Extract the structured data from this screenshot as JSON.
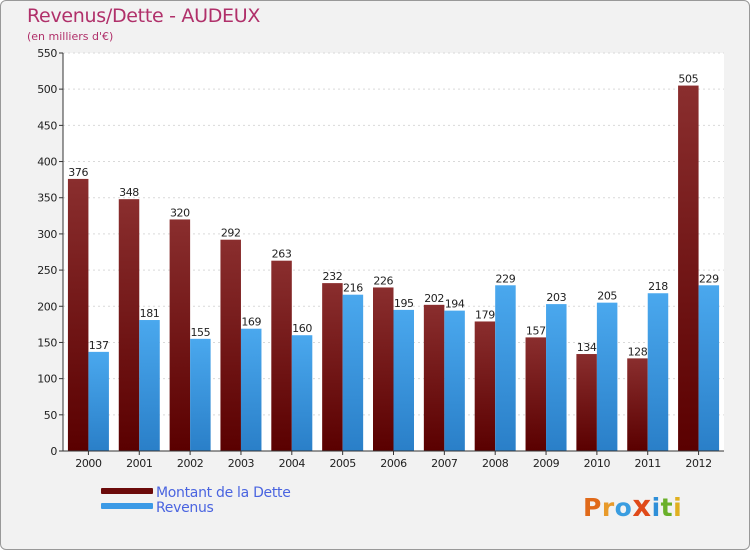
{
  "header": {
    "title": "Revenus/Dette - AUDEUX",
    "subtitle": "(en milliers d'€)"
  },
  "chart_data": {
    "type": "bar",
    "title": "Revenus/Dette - AUDEUX",
    "ylabel": "(en milliers d'€)",
    "xlabel": "",
    "ylim": [
      0,
      550
    ],
    "yticks": [
      0,
      50,
      100,
      150,
      200,
      250,
      300,
      350,
      400,
      450,
      500,
      550
    ],
    "grid": true,
    "categories": [
      "2000",
      "2001",
      "2002",
      "2003",
      "2004",
      "2005",
      "2006",
      "2007",
      "2008",
      "2009",
      "2010",
      "2011",
      "2012"
    ],
    "series": [
      {
        "name": "Montant de la Dette",
        "color": "#7a1a1a",
        "values": [
          376,
          348,
          320,
          292,
          263,
          232,
          226,
          202,
          179,
          157,
          134,
          128,
          505
        ]
      },
      {
        "name": "Revenus",
        "color": "#3b9ae6",
        "values": [
          137,
          181,
          155,
          169,
          160,
          216,
          195,
          194,
          229,
          203,
          205,
          218,
          229
        ]
      }
    ],
    "legend_position": "bottom-left"
  },
  "legend": {
    "items": [
      {
        "label": "Montant de la Dette",
        "color": "#6b0a0a"
      },
      {
        "label": "Revenus",
        "color": "#3b9ae6"
      }
    ]
  },
  "logo": {
    "letters": [
      {
        "ch": "P",
        "color": "#e06a1a"
      },
      {
        "ch": "r",
        "color": "#e89a2a"
      },
      {
        "ch": "o",
        "color": "#3a9de0"
      },
      {
        "ch": "x",
        "color": "#e04a1a"
      },
      {
        "ch": "i",
        "color": "#2f8fd8"
      },
      {
        "ch": "t",
        "color": "#6ab02a"
      },
      {
        "ch": "i",
        "color": "#e0b020"
      }
    ]
  }
}
